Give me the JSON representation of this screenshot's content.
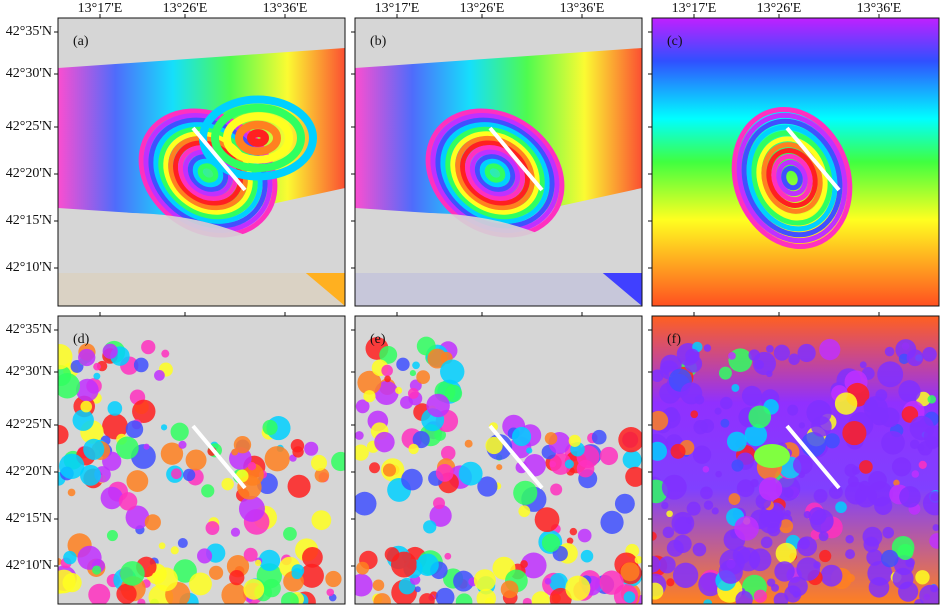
{
  "lon_ticks": [
    "13°17'E",
    "13°26'E",
    "13°36'E"
  ],
  "lat_ticks": [
    "42°35'N",
    "42°30'N",
    "42°25'N",
    "42°20'N",
    "42°15'N",
    "42°10'N"
  ],
  "panels": [
    {
      "label": "(a)"
    },
    {
      "label": "(b)"
    },
    {
      "label": "(c)"
    },
    {
      "label": "(d)"
    },
    {
      "label": "(e)"
    },
    {
      "label": "(f)"
    }
  ]
}
